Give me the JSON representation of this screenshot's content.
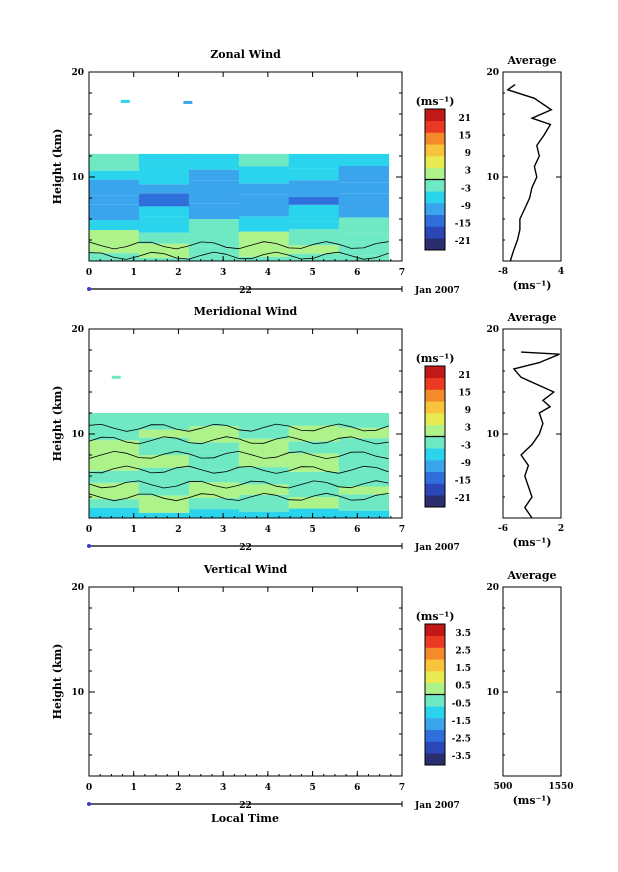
{
  "figure": {
    "xlabel": "Local Time",
    "date_label": "Jan 2007",
    "day_label": "22"
  },
  "chart_data": [
    {
      "type": "heatmap",
      "title": "Zonal Wind",
      "ylabel": "Height (km)",
      "x_ticks": [
        "0",
        "1",
        "2",
        "3",
        "4",
        "5",
        "6",
        "7"
      ],
      "y_ticks": [
        "10",
        "20"
      ],
      "xlim": [
        0,
        7
      ],
      "ylim": [
        2,
        20
      ],
      "colorbar": {
        "unit": "(ms⁻¹)",
        "ticks": [
          "21",
          "15",
          "9",
          "3",
          "-3",
          "-9",
          "-15",
          "-21"
        ],
        "vmin": -24,
        "vmax": 24
      },
      "profile": {
        "title": "Average",
        "unit": "(ms⁻¹)",
        "xlim": [
          -8,
          4
        ],
        "x_ticks": [
          "-8",
          "4"
        ],
        "y_ticks": [
          "10",
          "20"
        ]
      },
      "data_extent": {
        "x_end": 6.7,
        "y_top": 12.2
      },
      "bands": [
        {
          "y0": 2.0,
          "y1": 2.5,
          "value": -2
        },
        {
          "y0": 2.5,
          "y1": 3.5,
          "value": 1
        },
        {
          "y0": 3.5,
          "y1": 4.8,
          "value": -1
        },
        {
          "y0": 4.8,
          "y1": 6.0,
          "value": -5
        },
        {
          "y0": 6.0,
          "y1": 7.2,
          "value": -9
        },
        {
          "y0": 7.2,
          "y1": 8.2,
          "value": -12
        },
        {
          "y0": 8.2,
          "y1": 9.5,
          "value": -10
        },
        {
          "y0": 9.5,
          "y1": 10.8,
          "value": -8
        },
        {
          "y0": 10.8,
          "y1": 12.2,
          "value": -5
        }
      ],
      "isolated": [
        {
          "x": 0.8,
          "y": 17.2,
          "value": -7
        },
        {
          "x": 2.2,
          "y": 17.1,
          "value": -9
        }
      ],
      "profile_values": [
        [
          -6.5,
          2
        ],
        [
          -5.8,
          3
        ],
        [
          -5.0,
          4
        ],
        [
          -4.5,
          5
        ],
        [
          -4.5,
          6
        ],
        [
          -3.5,
          7
        ],
        [
          -2.5,
          8
        ],
        [
          -2.0,
          9
        ],
        [
          -1.0,
          10
        ],
        [
          -1.5,
          11
        ],
        [
          -0.5,
          12
        ],
        [
          -1.0,
          13
        ],
        [
          0.5,
          14
        ],
        [
          1.8,
          15
        ],
        [
          -2.0,
          15.6
        ],
        [
          2.0,
          16.4
        ],
        [
          -1.5,
          17.5
        ],
        [
          -7.0,
          18.3
        ],
        [
          -5.5,
          18.8
        ]
      ]
    },
    {
      "type": "heatmap",
      "title": "Meridional Wind",
      "ylabel": "Height (km)",
      "x_ticks": [
        "0",
        "1",
        "2",
        "3",
        "4",
        "5",
        "6",
        "7"
      ],
      "y_ticks": [
        "10",
        "20"
      ],
      "xlim": [
        0,
        7
      ],
      "ylim": [
        2,
        20
      ],
      "colorbar": {
        "unit": "(ms⁻¹)",
        "ticks": [
          "21",
          "15",
          "9",
          "3",
          "-3",
          "-9",
          "-15",
          "-21"
        ],
        "vmin": -24,
        "vmax": 24
      },
      "profile": {
        "title": "Average",
        "unit": "(ms⁻¹)",
        "xlim": [
          -6,
          2
        ],
        "x_ticks": [
          "-6",
          "2"
        ],
        "y_ticks": [
          "10",
          "20"
        ]
      },
      "data_extent": {
        "x_end": 6.7,
        "y_top": 12.0
      },
      "bands": [
        {
          "y0": 2.0,
          "y1": 2.7,
          "value": -6
        },
        {
          "y0": 2.7,
          "y1": 4.0,
          "value": -1
        },
        {
          "y0": 4.0,
          "y1": 5.2,
          "value": 1
        },
        {
          "y0": 5.2,
          "y1": 6.6,
          "value": -2
        },
        {
          "y0": 6.6,
          "y1": 8.0,
          "value": 1
        },
        {
          "y0": 8.0,
          "y1": 9.4,
          "value": -1
        },
        {
          "y0": 9.4,
          "y1": 10.6,
          "value": 1
        },
        {
          "y0": 10.6,
          "y1": 12.0,
          "value": -2
        }
      ],
      "isolated": [
        {
          "x": 0.6,
          "y": 15.4,
          "value": -3
        }
      ],
      "profile_values": [
        [
          -2.0,
          2
        ],
        [
          -3.0,
          3
        ],
        [
          -2.0,
          4
        ],
        [
          -2.5,
          5
        ],
        [
          -3.0,
          6
        ],
        [
          -2.5,
          7
        ],
        [
          -3.5,
          8
        ],
        [
          -2.0,
          9
        ],
        [
          -1.0,
          10
        ],
        [
          -0.5,
          11
        ],
        [
          -1.0,
          12
        ],
        [
          0.5,
          12.6
        ],
        [
          -0.5,
          13.2
        ],
        [
          1.0,
          14
        ],
        [
          -3.5,
          15.4
        ],
        [
          -4.5,
          16.2
        ],
        [
          -1.0,
          16.8
        ],
        [
          1.8,
          17.6
        ],
        [
          -3.5,
          17.8
        ]
      ]
    },
    {
      "type": "heatmap",
      "title": "Vertical Wind",
      "ylabel": "Height (km)",
      "x_ticks": [
        "0",
        "1",
        "2",
        "3",
        "4",
        "5",
        "6",
        "7"
      ],
      "y_ticks": [
        "10",
        "20"
      ],
      "xlim": [
        0,
        7
      ],
      "ylim": [
        2,
        20
      ],
      "colorbar": {
        "unit": "(ms⁻¹)",
        "ticks": [
          "3.5",
          "2.5",
          "1.5",
          "0.5",
          "-0.5",
          "-1.5",
          "-2.5",
          "-3.5"
        ],
        "vmin": -4,
        "vmax": 4
      },
      "profile": {
        "title": "Average",
        "unit": "(ms⁻¹)",
        "xlim": [
          500,
          1550
        ],
        "x_ticks": [
          "500",
          "1550"
        ],
        "y_ticks": [
          "10",
          "20"
        ]
      },
      "data_extent": null,
      "bands": [],
      "isolated": [],
      "profile_values": []
    }
  ]
}
